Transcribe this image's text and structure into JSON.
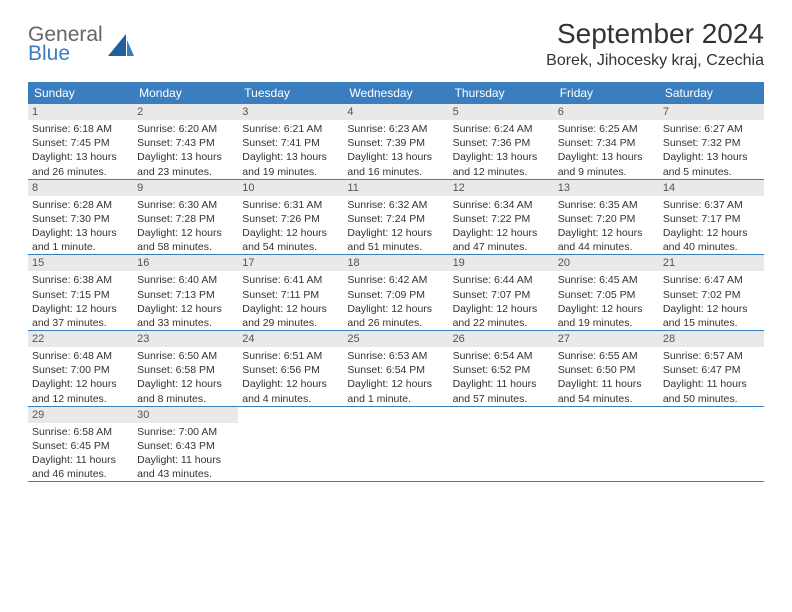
{
  "logo": {
    "general": "General",
    "blue": "Blue"
  },
  "title": "September 2024",
  "location": "Borek, Jihocesky kraj, Czechia",
  "colors": {
    "header_bg": "#3b7ec0",
    "header_text": "#ffffff",
    "daynum_bg": "#e9e9e9",
    "daynum_text": "#555555",
    "body_text": "#333333",
    "row_border": "#3b7ec0",
    "logo_gray": "#666666",
    "logo_blue": "#3b7ec0",
    "page_bg": "#ffffff"
  },
  "fonts": {
    "title_size_pt": 21,
    "location_size_pt": 12,
    "weekday_size_pt": 9,
    "daynum_size_pt": 8,
    "cell_text_size_pt": 8
  },
  "layout": {
    "columns": 7,
    "rows": 5,
    "start_weekday": "Sunday"
  },
  "weekdays": [
    "Sunday",
    "Monday",
    "Tuesday",
    "Wednesday",
    "Thursday",
    "Friday",
    "Saturday"
  ],
  "days": [
    {
      "num": "1",
      "sunrise": "Sunrise: 6:18 AM",
      "sunset": "Sunset: 7:45 PM",
      "daylight": "Daylight: 13 hours and 26 minutes."
    },
    {
      "num": "2",
      "sunrise": "Sunrise: 6:20 AM",
      "sunset": "Sunset: 7:43 PM",
      "daylight": "Daylight: 13 hours and 23 minutes."
    },
    {
      "num": "3",
      "sunrise": "Sunrise: 6:21 AM",
      "sunset": "Sunset: 7:41 PM",
      "daylight": "Daylight: 13 hours and 19 minutes."
    },
    {
      "num": "4",
      "sunrise": "Sunrise: 6:23 AM",
      "sunset": "Sunset: 7:39 PM",
      "daylight": "Daylight: 13 hours and 16 minutes."
    },
    {
      "num": "5",
      "sunrise": "Sunrise: 6:24 AM",
      "sunset": "Sunset: 7:36 PM",
      "daylight": "Daylight: 13 hours and 12 minutes."
    },
    {
      "num": "6",
      "sunrise": "Sunrise: 6:25 AM",
      "sunset": "Sunset: 7:34 PM",
      "daylight": "Daylight: 13 hours and 9 minutes."
    },
    {
      "num": "7",
      "sunrise": "Sunrise: 6:27 AM",
      "sunset": "Sunset: 7:32 PM",
      "daylight": "Daylight: 13 hours and 5 minutes."
    },
    {
      "num": "8",
      "sunrise": "Sunrise: 6:28 AM",
      "sunset": "Sunset: 7:30 PM",
      "daylight": "Daylight: 13 hours and 1 minute."
    },
    {
      "num": "9",
      "sunrise": "Sunrise: 6:30 AM",
      "sunset": "Sunset: 7:28 PM",
      "daylight": "Daylight: 12 hours and 58 minutes."
    },
    {
      "num": "10",
      "sunrise": "Sunrise: 6:31 AM",
      "sunset": "Sunset: 7:26 PM",
      "daylight": "Daylight: 12 hours and 54 minutes."
    },
    {
      "num": "11",
      "sunrise": "Sunrise: 6:32 AM",
      "sunset": "Sunset: 7:24 PM",
      "daylight": "Daylight: 12 hours and 51 minutes."
    },
    {
      "num": "12",
      "sunrise": "Sunrise: 6:34 AM",
      "sunset": "Sunset: 7:22 PM",
      "daylight": "Daylight: 12 hours and 47 minutes."
    },
    {
      "num": "13",
      "sunrise": "Sunrise: 6:35 AM",
      "sunset": "Sunset: 7:20 PM",
      "daylight": "Daylight: 12 hours and 44 minutes."
    },
    {
      "num": "14",
      "sunrise": "Sunrise: 6:37 AM",
      "sunset": "Sunset: 7:17 PM",
      "daylight": "Daylight: 12 hours and 40 minutes."
    },
    {
      "num": "15",
      "sunrise": "Sunrise: 6:38 AM",
      "sunset": "Sunset: 7:15 PM",
      "daylight": "Daylight: 12 hours and 37 minutes."
    },
    {
      "num": "16",
      "sunrise": "Sunrise: 6:40 AM",
      "sunset": "Sunset: 7:13 PM",
      "daylight": "Daylight: 12 hours and 33 minutes."
    },
    {
      "num": "17",
      "sunrise": "Sunrise: 6:41 AM",
      "sunset": "Sunset: 7:11 PM",
      "daylight": "Daylight: 12 hours and 29 minutes."
    },
    {
      "num": "18",
      "sunrise": "Sunrise: 6:42 AM",
      "sunset": "Sunset: 7:09 PM",
      "daylight": "Daylight: 12 hours and 26 minutes."
    },
    {
      "num": "19",
      "sunrise": "Sunrise: 6:44 AM",
      "sunset": "Sunset: 7:07 PM",
      "daylight": "Daylight: 12 hours and 22 minutes."
    },
    {
      "num": "20",
      "sunrise": "Sunrise: 6:45 AM",
      "sunset": "Sunset: 7:05 PM",
      "daylight": "Daylight: 12 hours and 19 minutes."
    },
    {
      "num": "21",
      "sunrise": "Sunrise: 6:47 AM",
      "sunset": "Sunset: 7:02 PM",
      "daylight": "Daylight: 12 hours and 15 minutes."
    },
    {
      "num": "22",
      "sunrise": "Sunrise: 6:48 AM",
      "sunset": "Sunset: 7:00 PM",
      "daylight": "Daylight: 12 hours and 12 minutes."
    },
    {
      "num": "23",
      "sunrise": "Sunrise: 6:50 AM",
      "sunset": "Sunset: 6:58 PM",
      "daylight": "Daylight: 12 hours and 8 minutes."
    },
    {
      "num": "24",
      "sunrise": "Sunrise: 6:51 AM",
      "sunset": "Sunset: 6:56 PM",
      "daylight": "Daylight: 12 hours and 4 minutes."
    },
    {
      "num": "25",
      "sunrise": "Sunrise: 6:53 AM",
      "sunset": "Sunset: 6:54 PM",
      "daylight": "Daylight: 12 hours and 1 minute."
    },
    {
      "num": "26",
      "sunrise": "Sunrise: 6:54 AM",
      "sunset": "Sunset: 6:52 PM",
      "daylight": "Daylight: 11 hours and 57 minutes."
    },
    {
      "num": "27",
      "sunrise": "Sunrise: 6:55 AM",
      "sunset": "Sunset: 6:50 PM",
      "daylight": "Daylight: 11 hours and 54 minutes."
    },
    {
      "num": "28",
      "sunrise": "Sunrise: 6:57 AM",
      "sunset": "Sunset: 6:47 PM",
      "daylight": "Daylight: 11 hours and 50 minutes."
    },
    {
      "num": "29",
      "sunrise": "Sunrise: 6:58 AM",
      "sunset": "Sunset: 6:45 PM",
      "daylight": "Daylight: 11 hours and 46 minutes."
    },
    {
      "num": "30",
      "sunrise": "Sunrise: 7:00 AM",
      "sunset": "Sunset: 6:43 PM",
      "daylight": "Daylight: 11 hours and 43 minutes."
    }
  ]
}
